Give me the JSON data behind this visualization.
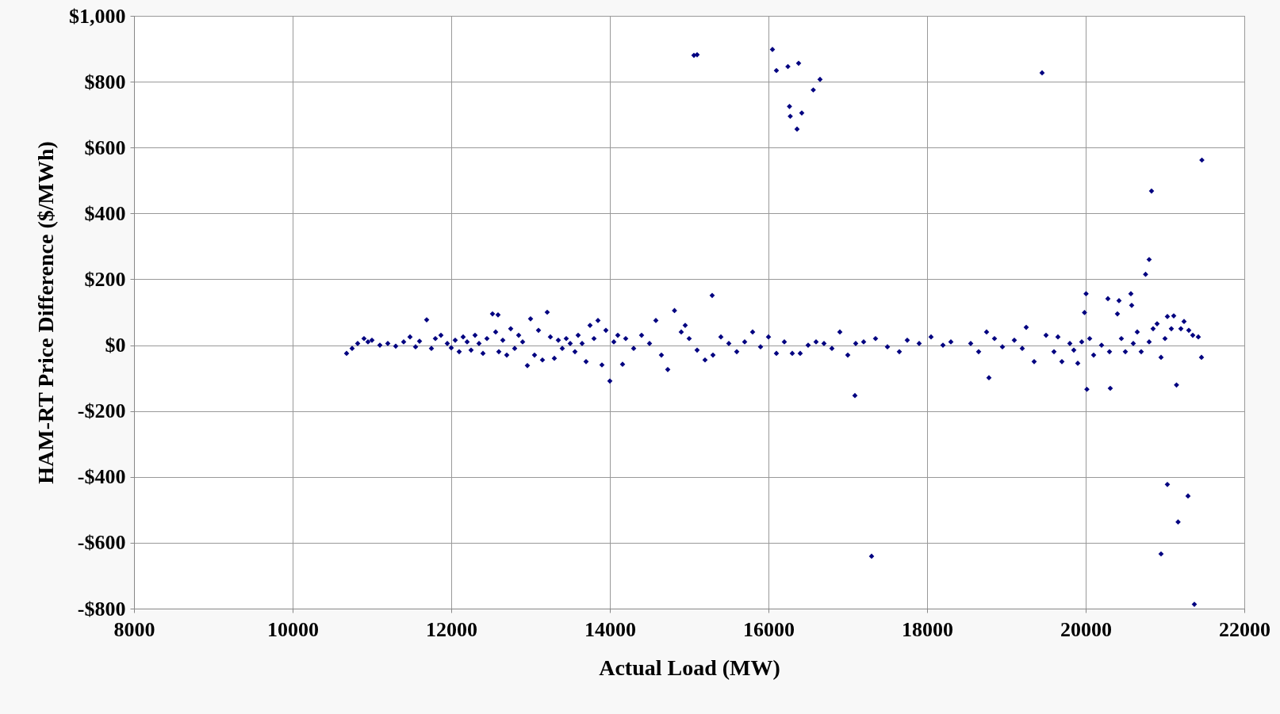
{
  "chart_data": {
    "type": "scatter",
    "xlabel": "Actual Load (MW)",
    "ylabel": "HAM-RT Price Difference ($/MWh)",
    "marker": "diamond",
    "grid": true,
    "xlim": [
      8000,
      22000
    ],
    "xticks": [
      8000,
      10000,
      12000,
      14000,
      16000,
      18000,
      20000,
      22000
    ],
    "ylim": [
      -800,
      1000
    ],
    "yticks": [
      {
        "value": -800,
        "label": "-$800"
      },
      {
        "value": -600,
        "label": "-$600"
      },
      {
        "value": -400,
        "label": "-$400"
      },
      {
        "value": -200,
        "label": "-$200"
      },
      {
        "value": 0,
        "label": "$0"
      },
      {
        "value": 200,
        "label": "$200"
      },
      {
        "value": 400,
        "label": "$400"
      },
      {
        "value": 600,
        "label": "$600"
      },
      {
        "value": 800,
        "label": "$800"
      },
      {
        "value": 1000,
        "label": "$1,000"
      }
    ],
    "series": [
      {
        "color": "#000080",
        "x": [
          15060,
          15100,
          16050,
          16100,
          16245,
          16380,
          16265,
          16275,
          16420,
          16360,
          16565,
          16650,
          19450,
          21465,
          20830,
          20800,
          20755,
          20005,
          15290,
          20570,
          17090,
          17300,
          18780,
          20015,
          20310,
          21145,
          21030,
          21290,
          21165,
          20950,
          21370,
          21460,
          20950,
          20280,
          19985,
          21030,
          21110,
          21240,
          19250,
          20580,
          10680,
          10750,
          10820,
          10900,
          10950,
          11000,
          11100,
          11200,
          11300,
          11400,
          11480,
          11550,
          11600,
          11690,
          11750,
          11800,
          11870,
          11950,
          12000,
          12050,
          12100,
          12150,
          12200,
          12250,
          12300,
          12350,
          12400,
          12450,
          12520,
          12590,
          12560,
          12600,
          12650,
          12700,
          12750,
          12800,
          12850,
          12900,
          12960,
          13000,
          13050,
          13100,
          13150,
          13210,
          13250,
          13300,
          13350,
          13400,
          13450,
          13500,
          13560,
          13600,
          13650,
          13700,
          13750,
          13800,
          13850,
          13900,
          13950,
          14000,
          14050,
          14100,
          14160,
          14200,
          14300,
          14400,
          14500,
          14580,
          14650,
          14730,
          14815,
          14900,
          14950,
          15000,
          15100,
          15200,
          15300,
          15400,
          15500,
          15600,
          15700,
          15800,
          15900,
          16000,
          16100,
          16200,
          16300,
          16400,
          16500,
          16600,
          16700,
          16800,
          16900,
          17000,
          17100,
          17200,
          17350,
          17500,
          17650,
          17750,
          17900,
          18050,
          18200,
          18300,
          18550,
          18650,
          18750,
          18850,
          18950,
          19100,
          19200,
          19350,
          19500,
          19600,
          19650,
          19700,
          19800,
          19850,
          19900,
          19950,
          20050,
          20100,
          20200,
          20300,
          20420,
          20400,
          20450,
          20500,
          20600,
          20650,
          20700,
          20800,
          20850,
          20900,
          21000,
          21080,
          21200,
          21300,
          21350,
          21420
        ],
        "values": [
          880,
          882,
          898,
          834,
          846,
          856,
          725,
          695,
          705,
          656,
          775,
          807,
          827,
          562,
          468,
          260,
          215,
          156,
          151,
          156,
          -153,
          -641,
          -99,
          -134,
          -131,
          -121,
          -423,
          -458,
          -537,
          -634,
          -787,
          -37,
          -37,
          141,
          99,
          87,
          89,
          72,
          54,
          121,
          -25,
          -10,
          5,
          20,
          10,
          15,
          0,
          5,
          -3,
          10,
          25,
          -5,
          12,
          77,
          -10,
          20,
          30,
          5,
          -8,
          15,
          -20,
          25,
          10,
          -15,
          30,
          5,
          -25,
          20,
          95,
          92,
          40,
          -20,
          15,
          -30,
          50,
          -10,
          30,
          10,
          -62,
          80,
          -30,
          45,
          -45,
          100,
          25,
          -40,
          15,
          -10,
          20,
          5,
          -20,
          30,
          5,
          -50,
          60,
          20,
          75,
          -60,
          45,
          -109,
          10,
          30,
          -58,
          20,
          -10,
          30,
          5,
          75,
          -30,
          -74,
          105,
          40,
          60,
          20,
          -15,
          -45,
          -30,
          25,
          5,
          -20,
          10,
          40,
          -5,
          25,
          -25,
          10,
          -25,
          -25,
          0,
          10,
          5,
          -10,
          40,
          -30,
          5,
          10,
          20,
          -5,
          -20,
          15,
          5,
          25,
          0,
          10,
          5,
          -20,
          40,
          20,
          -5,
          15,
          -10,
          -50,
          30,
          -20,
          25,
          -50,
          5,
          -15,
          -55,
          10,
          20,
          -30,
          0,
          -20,
          135,
          95,
          20,
          -20,
          5,
          40,
          -20,
          10,
          50,
          65,
          20,
          50,
          50,
          45,
          30,
          25
        ]
      }
    ]
  }
}
